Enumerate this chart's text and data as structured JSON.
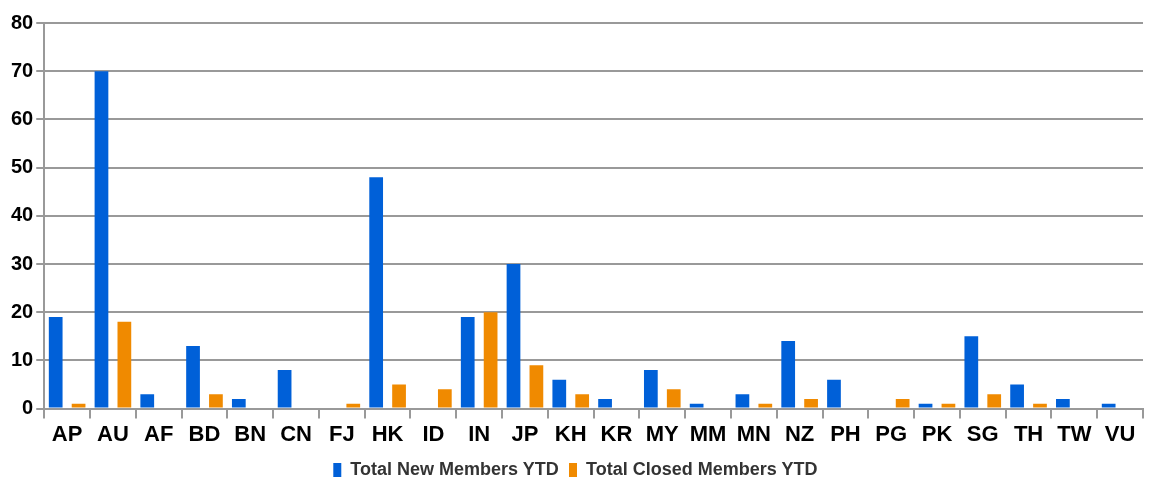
{
  "chart_data": {
    "type": "bar",
    "categories": [
      "AP",
      "AU",
      "AF",
      "BD",
      "BN",
      "CN",
      "FJ",
      "HK",
      "ID",
      "IN",
      "JP",
      "KH",
      "KR",
      "MY",
      "MM",
      "MN",
      "NZ",
      "PH",
      "PG",
      "PK",
      "SG",
      "TH",
      "TW",
      "VU"
    ],
    "series": [
      {
        "name": "Total New Members YTD",
        "color": "#0060d8",
        "values": [
          19,
          70,
          3,
          13,
          2,
          8,
          0,
          48,
          0,
          19,
          30,
          6,
          2,
          8,
          1,
          3,
          14,
          6,
          0,
          1,
          15,
          5,
          2,
          1
        ]
      },
      {
        "name": "Total Closed Members YTD",
        "color": "#f08a00",
        "values": [
          1,
          18,
          0,
          3,
          0,
          0,
          1,
          5,
          4,
          20,
          9,
          3,
          0,
          4,
          0,
          1,
          2,
          0,
          2,
          1,
          3,
          1,
          0,
          0
        ]
      }
    ],
    "ylim": [
      0,
      80
    ],
    "yticks": [
      0,
      10,
      20,
      30,
      40,
      50,
      60,
      70,
      80
    ],
    "grid": "y",
    "legend": "bottom"
  }
}
